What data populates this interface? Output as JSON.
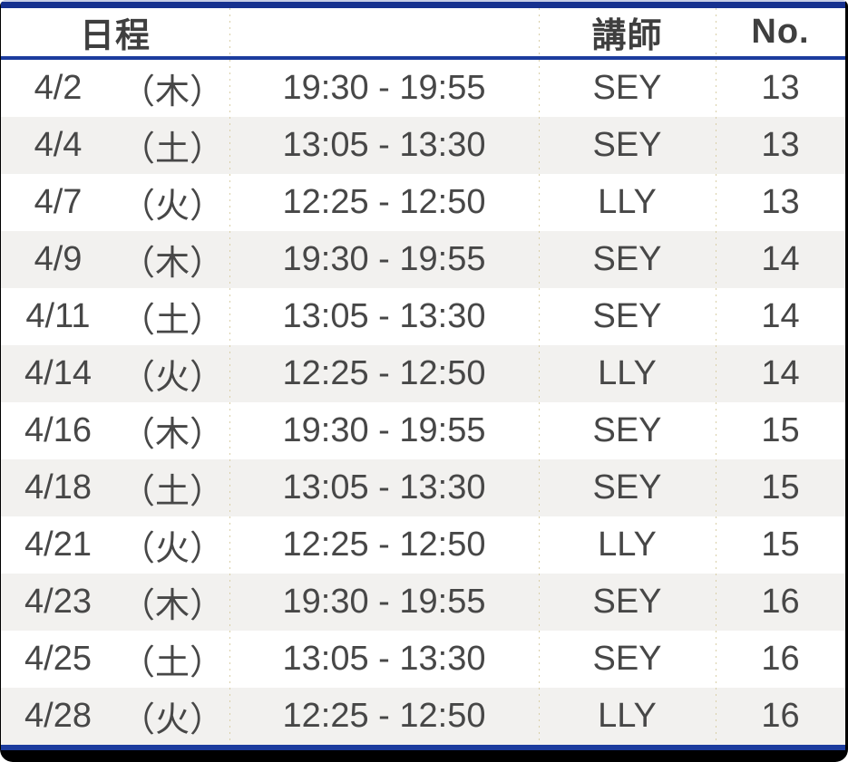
{
  "table": {
    "headers": {
      "date": "日程",
      "time": "",
      "instructor": "講師",
      "number": "No."
    },
    "rows": [
      {
        "date": "4/2",
        "day": "（木）",
        "time": "19:30 - 19:55",
        "instructor": "SEY",
        "no": "13"
      },
      {
        "date": "4/4",
        "day": "（土）",
        "time": "13:05 - 13:30",
        "instructor": "SEY",
        "no": "13"
      },
      {
        "date": "4/7",
        "day": "（火）",
        "time": "12:25 - 12:50",
        "instructor": "LLY",
        "no": "13"
      },
      {
        "date": "4/9",
        "day": "（木）",
        "time": "19:30 - 19:55",
        "instructor": "SEY",
        "no": "14"
      },
      {
        "date": "4/11",
        "day": "（土）",
        "time": "13:05 - 13:30",
        "instructor": "SEY",
        "no": "14"
      },
      {
        "date": "4/14",
        "day": "（火）",
        "time": "12:25 - 12:50",
        "instructor": "LLY",
        "no": "14"
      },
      {
        "date": "4/16",
        "day": "（木）",
        "time": "19:30 - 19:55",
        "instructor": "SEY",
        "no": "15"
      },
      {
        "date": "4/18",
        "day": "（土）",
        "time": "13:05 - 13:30",
        "instructor": "SEY",
        "no": "15"
      },
      {
        "date": "4/21",
        "day": "（火）",
        "time": "12:25 - 12:50",
        "instructor": "LLY",
        "no": "15"
      },
      {
        "date": "4/23",
        "day": "（木）",
        "time": "19:30 - 19:55",
        "instructor": "SEY",
        "no": "16"
      },
      {
        "date": "4/25",
        "day": "（土）",
        "time": "13:05 - 13:30",
        "instructor": "SEY",
        "no": "16"
      },
      {
        "date": "4/28",
        "day": "（火）",
        "time": "12:25 - 12:50",
        "instructor": "LLY",
        "no": "16"
      }
    ]
  },
  "colors": {
    "accent_navy_top": "#16318F",
    "accent_navy_lines": "#1C3C9E",
    "frame_black": "#000000",
    "row_alt_background": "#F2F1EF",
    "dot_separator_tan": "#D9CFA8",
    "text_dark_gray": "#474747",
    "header_text_gray": "#3F3F3F",
    "top_edge_light_blue": "#C6CDE6"
  }
}
